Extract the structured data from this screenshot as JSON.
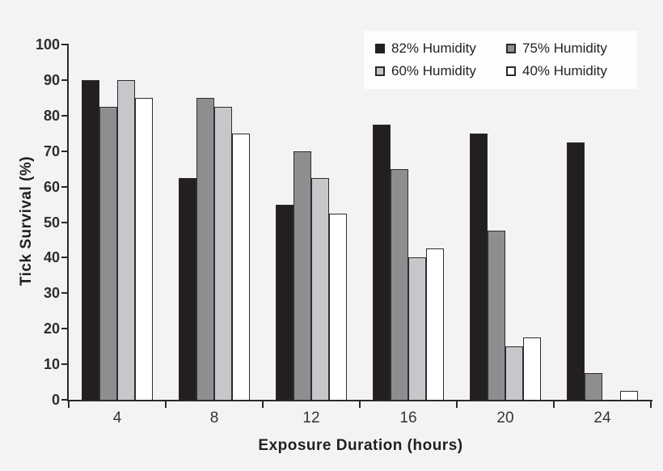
{
  "chart_data": {
    "type": "bar",
    "title": "",
    "xlabel": "Exposure Duration (hours)",
    "ylabel": "Tick Survival (%)",
    "categories": [
      "4",
      "8",
      "12",
      "16",
      "20",
      "24"
    ],
    "series": [
      {
        "name": "82% Humidity",
        "color": "#231f20",
        "values": [
          90,
          62.5,
          55,
          77.5,
          75,
          72.5
        ]
      },
      {
        "name": "75% Humidity",
        "color": "#8e8e91",
        "values": [
          82.5,
          85,
          70,
          65,
          47.5,
          7.5
        ]
      },
      {
        "name": "60% Humidity",
        "color": "#c7c7cb",
        "values": [
          90,
          82.5,
          62.5,
          40,
          15,
          0
        ]
      },
      {
        "name": "40% Humidity",
        "color": "#ffffff",
        "values": [
          85,
          75,
          52.5,
          42.5,
          17.5,
          2.5
        ]
      }
    ],
    "ylim": [
      0,
      100
    ],
    "yticks": [
      0,
      10,
      20,
      30,
      40,
      50,
      60,
      70,
      80,
      90,
      100
    ],
    "grid": false,
    "legend_position": "top-right",
    "legend_columns": 2,
    "bar_border_color": "#2e2c2d",
    "background_color": "#f4f3f3",
    "legend_background_color": "#fdfdfd"
  }
}
